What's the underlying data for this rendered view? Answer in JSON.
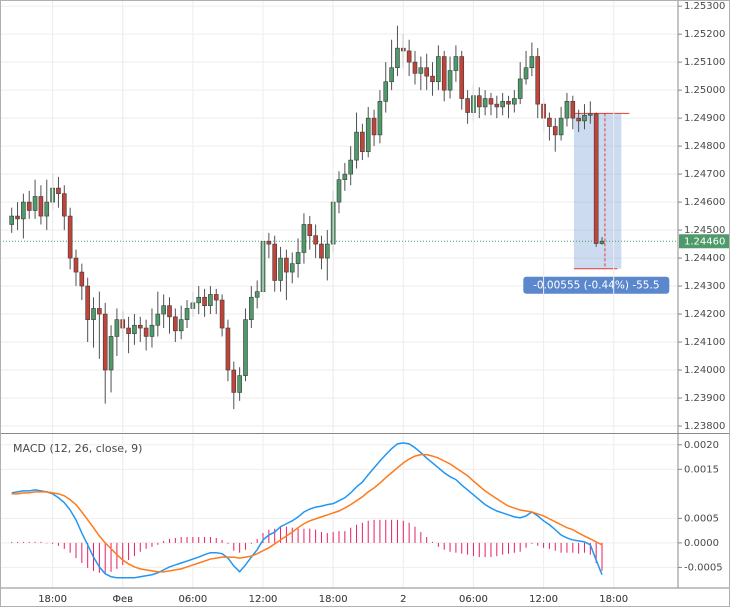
{
  "chart_data": [
    {
      "type": "candlestick",
      "up_color": "#4f9a6b",
      "down_color": "#c0443a",
      "grid": true,
      "xlim": [
        -2,
        114
      ],
      "ylim": [
        1.23775,
        1.25322
      ],
      "yticks": [
        {
          "value": 1.238,
          "label": "1.23800"
        },
        {
          "value": 1.239,
          "label": "1.23900"
        },
        {
          "value": 1.24,
          "label": "1.24000"
        },
        {
          "value": 1.241,
          "label": "1.24100"
        },
        {
          "value": 1.242,
          "label": "1.24200"
        },
        {
          "value": 1.243,
          "label": "1.24300"
        },
        {
          "value": 1.244,
          "label": "1.24400"
        },
        {
          "value": 1.245,
          "label": "1.24500"
        },
        {
          "value": 1.246,
          "label": "1.24600"
        },
        {
          "value": 1.247,
          "label": "1.24700"
        },
        {
          "value": 1.248,
          "label": "1.24800"
        },
        {
          "value": 1.249,
          "label": "1.24900"
        },
        {
          "value": 1.25,
          "label": "1.25000"
        },
        {
          "value": 1.251,
          "label": "1.25100"
        },
        {
          "value": 1.252,
          "label": "1.25200"
        },
        {
          "value": 1.253,
          "label": "1.25300"
        }
      ],
      "xticks": [
        {
          "value": 7,
          "label": "18:00"
        },
        {
          "value": 19,
          "label": "Фев"
        },
        {
          "value": 31,
          "label": "06:00"
        },
        {
          "value": 43,
          "label": "12:00"
        },
        {
          "value": 55,
          "label": "18:00"
        },
        {
          "value": 67,
          "label": "2"
        },
        {
          "value": 79,
          "label": "06:00"
        },
        {
          "value": 91,
          "label": "12:00"
        },
        {
          "value": 103,
          "label": "18:00"
        }
      ],
      "price_line": {
        "value": 1.2446,
        "label": "1.24460",
        "color": "#4f9a6b"
      },
      "measure": {
        "from": 1.24917,
        "to": 1.24362,
        "label": "-0.00555 (-0.44%) -55.5",
        "color": "#5b87cc"
      },
      "open": [
        1.2452,
        1.2455,
        1.2454,
        1.246,
        1.2457,
        1.2462,
        1.2455,
        1.246,
        1.2465,
        1.2463,
        1.2455,
        1.244,
        1.2435,
        1.243,
        1.2418,
        1.2422,
        1.242,
        1.24,
        1.2412,
        1.2418,
        1.2415,
        1.2413,
        1.2416,
        1.2415,
        1.2412,
        1.2416,
        1.242,
        1.2423,
        1.2419,
        1.2414,
        1.2418,
        1.2422,
        1.2424,
        1.2426,
        1.2423,
        1.2427,
        1.2425,
        1.2415,
        1.24,
        1.2392,
        1.2398,
        1.2418,
        1.2426,
        1.2428,
        1.2446,
        1.2445,
        1.2432,
        1.244,
        1.2435,
        1.2438,
        1.2442,
        1.2452,
        1.2448,
        1.2445,
        1.244,
        1.2445,
        1.246,
        1.2468,
        1.247,
        1.2475,
        1.2485,
        1.2478,
        1.249,
        1.2484,
        1.2496,
        1.2503,
        1.2508,
        1.2515,
        1.2514,
        1.251,
        1.2506,
        1.2508,
        1.2505,
        1.2503,
        1.2512,
        1.25,
        1.2507,
        1.2512,
        1.2497,
        1.2492,
        1.2498,
        1.2494,
        1.2497,
        1.2495,
        1.2494,
        1.2496,
        1.2495,
        1.2497,
        1.2504,
        1.2508,
        1.2512,
        1.2495,
        1.249,
        1.2487,
        1.2484,
        1.249,
        1.2496,
        1.249,
        1.2489,
        1.2491,
        1.24915,
        1.24452
      ],
      "high": [
        1.2458,
        1.246,
        1.2463,
        1.2464,
        1.2468,
        1.2466,
        1.2468,
        1.247,
        1.2469,
        1.2466,
        1.2458,
        1.2443,
        1.2438,
        1.2433,
        1.2426,
        1.2428,
        1.2424,
        1.2416,
        1.2422,
        1.2421,
        1.2419,
        1.242,
        1.2419,
        1.2418,
        1.2422,
        1.2428,
        1.2427,
        1.2426,
        1.2422,
        1.2423,
        1.2425,
        1.2428,
        1.243,
        1.2429,
        1.243,
        1.2429,
        1.2427,
        1.2418,
        1.2403,
        1.2401,
        1.2422,
        1.243,
        1.2432,
        1.2449,
        1.2449,
        1.2448,
        1.2444,
        1.2443,
        1.2442,
        1.2447,
        1.2456,
        1.2455,
        1.2452,
        1.2448,
        1.245,
        1.2464,
        1.2471,
        1.2474,
        1.248,
        1.2492,
        1.2488,
        1.2494,
        1.2493,
        1.25,
        1.251,
        1.2518,
        1.2523,
        1.252,
        1.2518,
        1.2514,
        1.2512,
        1.2513,
        1.251,
        1.2516,
        1.2514,
        1.2512,
        1.2516,
        1.2514,
        1.25,
        1.2502,
        1.2501,
        1.25,
        1.2499,
        1.2498,
        1.2499,
        1.2498,
        1.25,
        1.251,
        1.2514,
        1.2517,
        1.2515,
        1.2497,
        1.2492,
        1.249,
        1.2494,
        1.2499,
        1.2498,
        1.2493,
        1.2495,
        1.2496,
        1.2492,
        1.24475
      ],
      "low": [
        1.2449,
        1.245,
        1.2447,
        1.2454,
        1.2454,
        1.2452,
        1.245,
        1.2457,
        1.2458,
        1.245,
        1.2436,
        1.243,
        1.2425,
        1.241,
        1.2408,
        1.2404,
        1.2388,
        1.2392,
        1.2405,
        1.241,
        1.2406,
        1.2409,
        1.241,
        1.2407,
        1.2408,
        1.2412,
        1.2415,
        1.2413,
        1.241,
        1.2411,
        1.2415,
        1.2419,
        1.242,
        1.2419,
        1.242,
        1.242,
        1.2412,
        1.2396,
        1.2386,
        1.2389,
        1.2396,
        1.2415,
        1.2422,
        1.2425,
        1.244,
        1.2428,
        1.2428,
        1.2425,
        1.2431,
        1.2433,
        1.2438,
        1.2443,
        1.244,
        1.2436,
        1.2432,
        1.2442,
        1.2456,
        1.2464,
        1.2466,
        1.2472,
        1.2475,
        1.2476,
        1.248,
        1.2481,
        1.2492,
        1.25,
        1.2505,
        1.2508,
        1.2505,
        1.2502,
        1.25,
        1.25,
        1.2498,
        1.25,
        1.2496,
        1.2497,
        1.2503,
        1.2493,
        1.2488,
        1.2489,
        1.249,
        1.2491,
        1.2491,
        1.249,
        1.2491,
        1.249,
        1.2492,
        1.2495,
        1.2502,
        1.2505,
        1.249,
        1.2485,
        1.2482,
        1.2478,
        1.2482,
        1.2487,
        1.2486,
        1.2485,
        1.2486,
        1.2488,
        1.2444,
        1.24448
      ],
      "close": [
        1.2455,
        1.2454,
        1.246,
        1.2457,
        1.2462,
        1.2455,
        1.246,
        1.2465,
        1.2463,
        1.2455,
        1.244,
        1.2435,
        1.243,
        1.2418,
        1.2422,
        1.242,
        1.24,
        1.2412,
        1.2418,
        1.2415,
        1.2413,
        1.2416,
        1.2415,
        1.2412,
        1.2416,
        1.242,
        1.2423,
        1.2419,
        1.2414,
        1.2418,
        1.2422,
        1.2424,
        1.2426,
        1.2423,
        1.2427,
        1.2425,
        1.2415,
        1.24,
        1.2392,
        1.2398,
        1.2418,
        1.2426,
        1.2428,
        1.2446,
        1.2445,
        1.2432,
        1.244,
        1.2435,
        1.2438,
        1.2442,
        1.2452,
        1.2448,
        1.2445,
        1.244,
        1.2445,
        1.246,
        1.2468,
        1.247,
        1.2475,
        1.2485,
        1.2478,
        1.249,
        1.2484,
        1.2496,
        1.2503,
        1.2508,
        1.2515,
        1.2514,
        1.251,
        1.2506,
        1.2508,
        1.2505,
        1.2503,
        1.2512,
        1.25,
        1.2507,
        1.2512,
        1.2497,
        1.2492,
        1.2498,
        1.2494,
        1.2497,
        1.2495,
        1.2494,
        1.2496,
        1.2495,
        1.2497,
        1.2504,
        1.2508,
        1.2512,
        1.2495,
        1.249,
        1.2487,
        1.2484,
        1.249,
        1.2496,
        1.249,
        1.2489,
        1.2491,
        1.24915,
        1.24452,
        1.2446
      ]
    },
    {
      "type": "macd",
      "title": "MACD (12, 26, close, 9)",
      "grid": true,
      "xlim": [
        -2,
        114
      ],
      "ylim": [
        -0.00092,
        0.0022
      ],
      "yticks": [
        {
          "value": -0.0005,
          "label": "-0.0005"
        },
        {
          "value": 0,
          "label": "0.0000"
        },
        {
          "value": 0.0005,
          "label": "0.0005"
        },
        {
          "value": 0.0015,
          "label": "0.0015"
        },
        {
          "value": 0.002,
          "label": "0.0020"
        }
      ],
      "xticks": [
        {
          "value": 7,
          "label": "18:00"
        },
        {
          "value": 19,
          "label": "Фев"
        },
        {
          "value": 31,
          "label": "06:00"
        },
        {
          "value": 43,
          "label": "12:00"
        },
        {
          "value": 55,
          "label": "18:00"
        },
        {
          "value": 67,
          "label": "2"
        },
        {
          "value": 79,
          "label": "06:00"
        },
        {
          "value": 91,
          "label": "12:00"
        },
        {
          "value": 103,
          "label": "18:00"
        }
      ],
      "histogram": {
        "color": "#e91e63",
        "values": [
          2e-05,
          2e-05,
          2e-05,
          2e-05,
          2e-05,
          2e-05,
          0,
          -2e-05,
          -6e-05,
          -0.00012,
          -0.0002,
          -0.00031,
          -0.00041,
          -0.00051,
          -0.00057,
          -0.00061,
          -0.00063,
          -0.00059,
          -0.00053,
          -0.00045,
          -0.00035,
          -0.00027,
          -0.00018,
          -0.00012,
          -8e-05,
          -4e-05,
          4e-05,
          8e-05,
          0.0001,
          0.00012,
          0.00012,
          0.00012,
          0.00012,
          0.00012,
          0.00012,
          0.0001,
          6e-05,
          -2e-05,
          -0.00016,
          -0.0002,
          -0.00014,
          -2e-05,
          8e-05,
          0.0002,
          0.00027,
          0.00029,
          0.00033,
          0.00033,
          0.00031,
          0.00029,
          0.00029,
          0.00029,
          0.00027,
          0.00022,
          0.0002,
          0.00022,
          0.00024,
          0.00024,
          0.00031,
          0.00037,
          0.00041,
          0.00045,
          0.00047,
          0.00047,
          0.00047,
          0.00047,
          0.00047,
          0.00045,
          0.00041,
          0.00033,
          0.00022,
          0.00012,
          2e-05,
          -8e-05,
          -0.00014,
          -0.00018,
          -0.0002,
          -0.00022,
          -0.00024,
          -0.00027,
          -0.00029,
          -0.00029,
          -0.00029,
          -0.00027,
          -0.00024,
          -0.00022,
          -0.0002,
          -0.00018,
          -0.0001,
          -2e-05,
          -6e-05,
          -0.0001,
          -0.00012,
          -0.00016,
          -0.0002,
          -0.0002,
          -0.0002,
          -0.00022,
          -0.0002,
          -0.00024,
          -0.00041,
          -0.00057
        ]
      },
      "series": [
        {
          "color": "#2196f3",
          "values": [
            0.00102,
            0.00104,
            0.00106,
            0.00106,
            0.00108,
            0.00106,
            0.00104,
            0.001,
            0.00092,
            0.00082,
            0.00067,
            0.00047,
            0.0002,
            -4e-05,
            -0.00029,
            -0.00049,
            -0.00063,
            -0.00069,
            -0.00071,
            -0.00071,
            -0.00071,
            -0.00071,
            -0.00069,
            -0.00067,
            -0.00065,
            -0.00061,
            -0.00055,
            -0.00049,
            -0.00045,
            -0.00041,
            -0.00037,
            -0.00033,
            -0.00029,
            -0.00024,
            -0.0002,
            -0.0002,
            -0.00022,
            -0.00031,
            -0.00047,
            -0.00059,
            -0.00045,
            -0.00029,
            -0.00014,
            6e-05,
            0.00016,
            0.00022,
            0.00033,
            0.00039,
            0.00045,
            0.00053,
            0.00063,
            0.00069,
            0.00073,
            0.00075,
            0.00078,
            0.0008,
            0.00086,
            0.00092,
            0.00102,
            0.00114,
            0.00124,
            0.00139,
            0.00153,
            0.00167,
            0.0018,
            0.00192,
            0.00202,
            0.00204,
            0.00202,
            0.00194,
            0.00184,
            0.00173,
            0.00163,
            0.00153,
            0.00143,
            0.00135,
            0.00129,
            0.00118,
            0.00108,
            0.00098,
            0.00088,
            0.00078,
            0.00071,
            0.00065,
            0.00061,
            0.00057,
            0.00053,
            0.00051,
            0.00055,
            0.00063,
            0.00055,
            0.00045,
            0.00037,
            0.00027,
            0.00016,
            0.0001,
            6e-05,
            4e-05,
            2e-05,
            -4e-05,
            -0.00035,
            -0.00065
          ]
        },
        {
          "color": "#ff7a1a",
          "values": [
            0.001,
            0.001,
            0.00102,
            0.00102,
            0.00104,
            0.00104,
            0.00104,
            0.00102,
            0.001,
            0.00096,
            0.00088,
            0.00078,
            0.00063,
            0.00047,
            0.00031,
            0.00014,
            0,
            -0.00012,
            -0.00024,
            -0.00035,
            -0.00043,
            -0.00049,
            -0.00053,
            -0.00055,
            -0.00057,
            -0.00059,
            -0.00059,
            -0.00057,
            -0.00055,
            -0.00053,
            -0.00049,
            -0.00045,
            -0.00041,
            -0.00037,
            -0.00033,
            -0.00031,
            -0.00029,
            -0.00029,
            -0.00029,
            -0.00031,
            -0.00029,
            -0.00027,
            -0.00022,
            -0.00016,
            -0.0001,
            -2e-05,
            6e-05,
            0.00014,
            0.00022,
            0.00031,
            0.00039,
            0.00045,
            0.00049,
            0.00053,
            0.00057,
            0.00061,
            0.00065,
            0.00071,
            0.00078,
            0.00086,
            0.00094,
            0.00104,
            0.00112,
            0.00122,
            0.00133,
            0.00143,
            0.00153,
            0.00163,
            0.00171,
            0.00177,
            0.0018,
            0.0018,
            0.00177,
            0.00173,
            0.00167,
            0.00161,
            0.00153,
            0.00145,
            0.00137,
            0.00126,
            0.00116,
            0.00106,
            0.00098,
            0.0009,
            0.00082,
            0.00075,
            0.00071,
            0.00067,
            0.00065,
            0.00063,
            0.00059,
            0.00055,
            0.00049,
            0.00043,
            0.00037,
            0.00031,
            0.00027,
            0.0002,
            0.00014,
            8e-05,
            2e-05,
            -4e-05
          ]
        }
      ]
    }
  ]
}
